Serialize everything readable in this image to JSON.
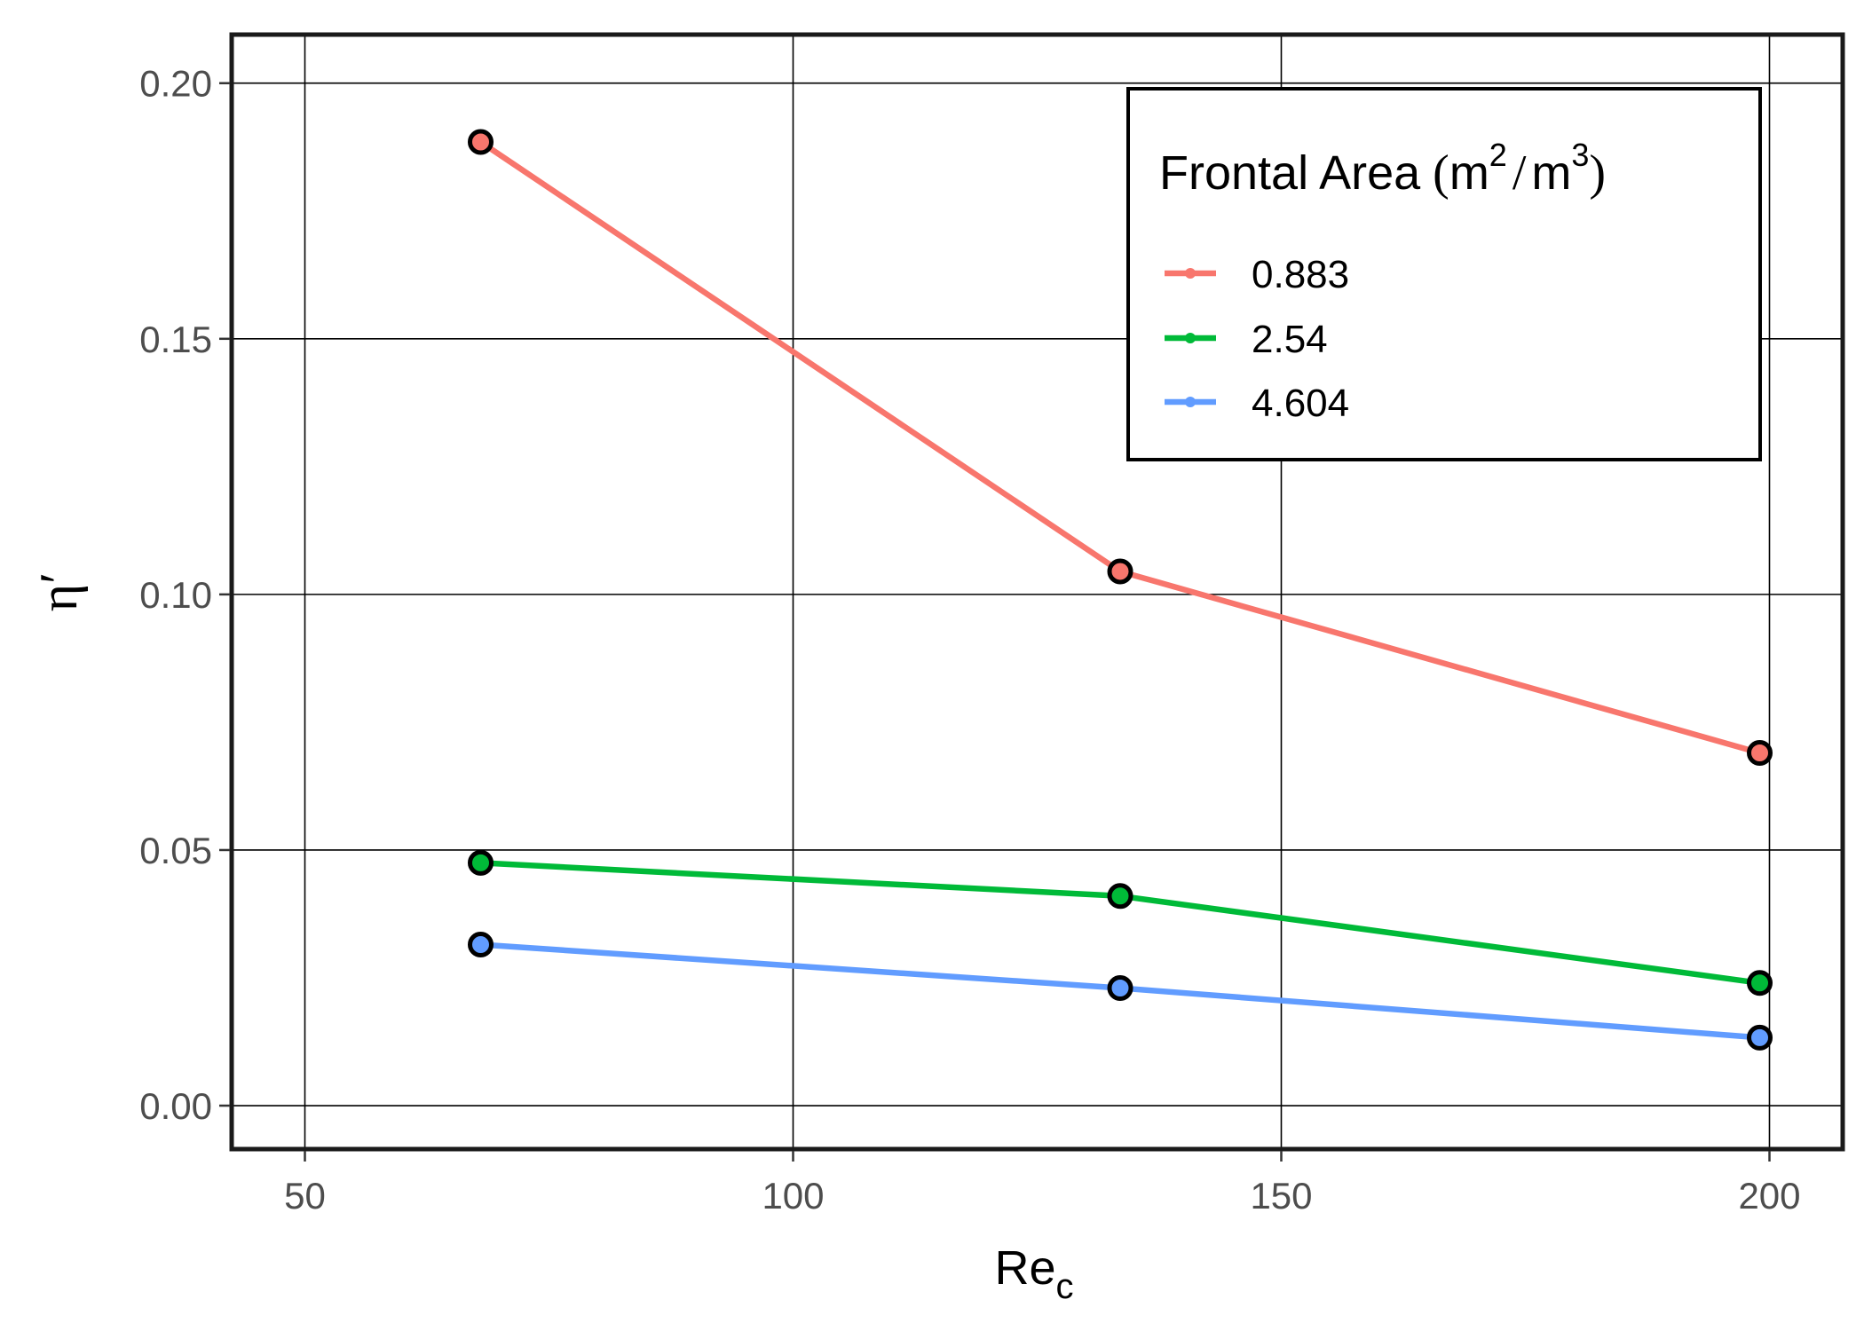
{
  "chart_data": {
    "type": "line",
    "title": "",
    "xlabel": {
      "main": "Re",
      "sub": "c"
    },
    "ylabel": "η′",
    "xlim": [
      42.5,
      207.5
    ],
    "ylim": [
      -0.0085,
      0.2095
    ],
    "x_ticks": [
      50,
      100,
      150,
      200
    ],
    "x_tick_labels": [
      "50",
      "100",
      "150",
      "200"
    ],
    "y_ticks": [
      0.0,
      0.05,
      0.1,
      0.15,
      0.2
    ],
    "y_tick_labels": [
      "0.00",
      "0.05",
      "0.10",
      "0.15",
      "0.20"
    ],
    "grid": true,
    "legend": {
      "placement": "top-right",
      "title": {
        "main": "Frontal Area",
        "open": "(",
        "unit1": "m",
        "exp1": "2",
        "slash": "/",
        "unit2": "m",
        "exp2": "3",
        "close": ")"
      }
    },
    "x": [
      68,
      133.5,
      199
    ],
    "series": [
      {
        "name": "0.883",
        "color": "#F8766D",
        "values": [
          0.1885,
          0.1045,
          0.069
        ]
      },
      {
        "name": "2.54",
        "color": "#00BA38",
        "values": [
          0.0475,
          0.041,
          0.024
        ]
      },
      {
        "name": "4.604",
        "color": "#619CFF",
        "values": [
          0.0315,
          0.023,
          0.0133
        ]
      }
    ],
    "marker_outline_color": "#000000"
  }
}
